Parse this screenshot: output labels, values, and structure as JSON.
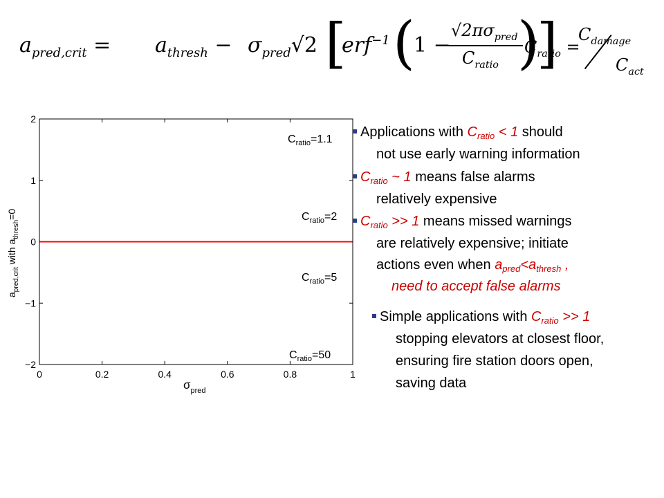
{
  "formula": {
    "lhs_a": "a",
    "lhs_sub": "pred,crit",
    "eq": "=",
    "t1_a": "a",
    "t1_sub": "thresh",
    "minus": "−",
    "sigma": "σ",
    "sigma_sub": "pred",
    "sqrt2": "√2",
    "erf": "erf",
    "erf_sup": "−1",
    "one": "1",
    "num": "√2πσ",
    "num_sub": "pred",
    "den": "C",
    "den_sub": "ratio",
    "c_lhs": "C",
    "c_lhs_sub": "ratio",
    "c_num": "C",
    "c_num_sub": "damage",
    "c_den": "C",
    "c_den_sub": "act"
  },
  "chart_data": {
    "type": "line",
    "xlabel": "σ",
    "xlabel_sub": "pred",
    "ylabel_pre": "a",
    "ylabel_sub1": "pred,crit",
    "ylabel_mid": " with a",
    "ylabel_sub2": "thresh",
    "ylabel_post": "=0",
    "xlim": [
      0,
      1
    ],
    "ylim": [
      -2,
      2
    ],
    "xticks": [
      "0",
      "0.2",
      "0.4",
      "0.6",
      "0.8",
      "1"
    ],
    "yticks": [
      "−2",
      "−1",
      "0",
      "1",
      "2"
    ],
    "series": [
      {
        "name": "C",
        "sub": "ratio",
        "eqv": "=1.1",
        "cratio": 1.1
      },
      {
        "name": "C",
        "sub": "ratio",
        "eqv": "=2",
        "cratio": 2
      },
      {
        "name": "C",
        "sub": "ratio",
        "eqv": "=5",
        "cratio": 5
      },
      {
        "name": "C",
        "sub": "ratio",
        "eqv": "=50",
        "cratio": 50
      }
    ],
    "reference_line_y": 0,
    "colors": {
      "curves": "#7f7fff",
      "reference": "#ff0000"
    }
  },
  "bullets": {
    "b1_l1_a": "Applications with ",
    "b1_l1_c": "C",
    "b1_l1_sub": "ratio",
    "b1_l1_b": " < 1",
    "b1_l1_c2": " should",
    "b1_l2": "not use early warning information",
    "b2_l1_c": "C",
    "b2_l1_sub": "ratio",
    "b2_l1_b": " ~ 1",
    "b2_l1_c2": " means false alarms",
    "b2_l2": "relatively expensive",
    "b3_l1_c": "C",
    "b3_l1_sub": "ratio",
    "b3_l1_b": " >> 1",
    "b3_l1_c2": " means missed warnings",
    "b3_l2": "are relatively expensive; initiate",
    "b3_l3_a": "actions even when ",
    "b3_l3_a1": "a",
    "b3_l3_s1": "pred",
    "b3_l3_lt": "<",
    "b3_l3_a2": "a",
    "b3_l3_s2": "thresh",
    "b3_l3_end": " ,",
    "b3_l4": "need to accept false alarms",
    "b4_l1_a": "Simple applications with ",
    "b4_l1_c": "C",
    "b4_l1_sub": "ratio",
    "b4_l1_b": " >> 1",
    "b4_l2": "stopping elevators at closest floor,",
    "b4_l3": "ensuring fire station doors open,",
    "b4_l4": "saving data"
  }
}
